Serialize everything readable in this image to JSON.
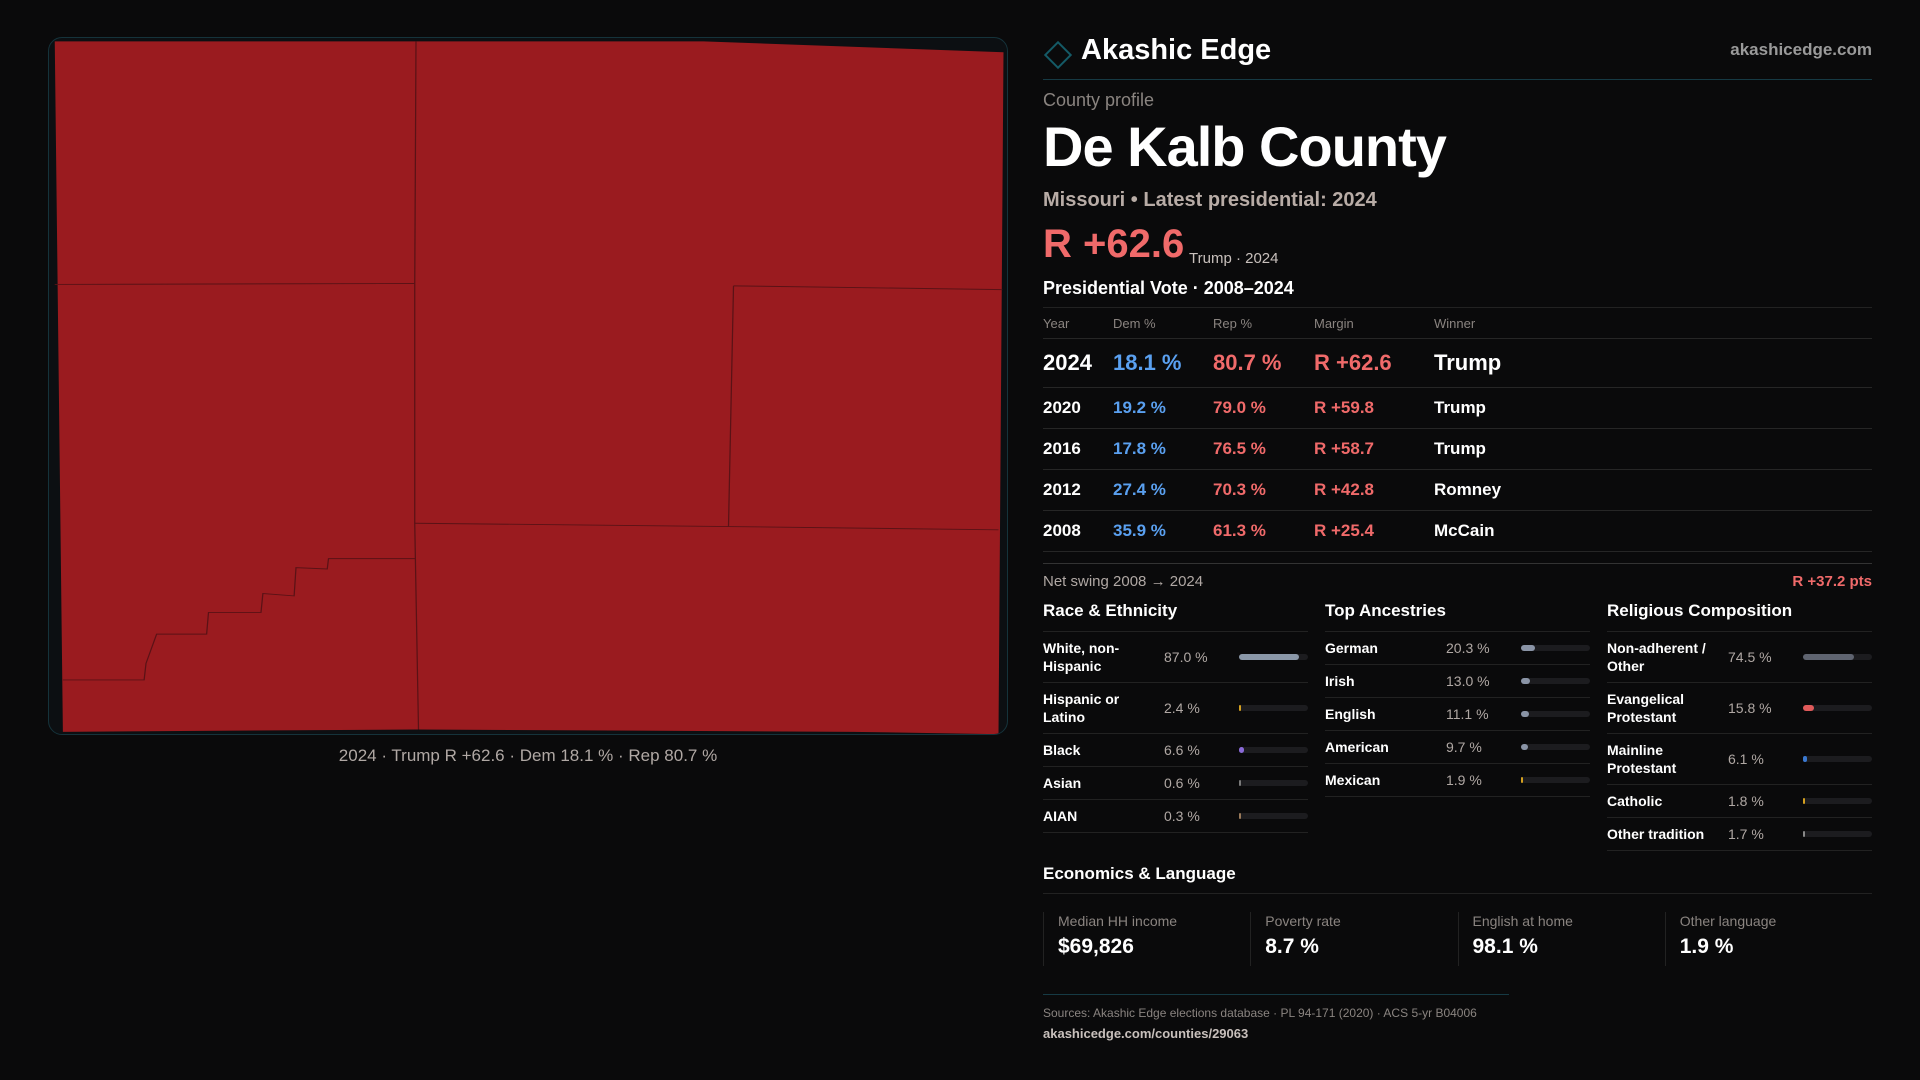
{
  "brand": {
    "name": "Akashic Edge",
    "url": "akashicedge.com",
    "logo_icon": "diamond-icon"
  },
  "profile": {
    "kicker": "County profile",
    "title": "De Kalb County",
    "subtitle": "Missouri • Latest presidential: 2024",
    "headline_margin": "R +62.6",
    "headline_sub": "Trump · 2024"
  },
  "map": {
    "fill_color": "#9a1b1f",
    "caption": "2024 · Trump R +62.6 · Dem 18.1 % · Rep 80.7 %"
  },
  "votes": {
    "title": "Presidential Vote · 2008–2024",
    "columns": [
      "Year",
      "Dem %",
      "Rep %",
      "Margin",
      "Winner"
    ],
    "rows": [
      [
        "2024",
        "18.1 %",
        "80.7 %",
        "R +62.6",
        "Trump"
      ],
      [
        "2020",
        "19.2 %",
        "79.0 %",
        "R +59.8",
        "Trump"
      ],
      [
        "2016",
        "17.8 %",
        "76.5 %",
        "R +58.7",
        "Trump"
      ],
      [
        "2012",
        "27.4 %",
        "70.3 %",
        "R +42.8",
        "Romney"
      ],
      [
        "2008",
        "35.9 %",
        "61.3 %",
        "R +25.4",
        "McCain"
      ]
    ],
    "swing_label": "Net swing 2008 → 2024",
    "swing_value": "R +37.2 pts"
  },
  "sections": [
    {
      "title": "Race & Ethnicity",
      "items": [
        {
          "label": "White, non-Hispanic",
          "value": "87.0 %",
          "pct": 87.0,
          "color": "#8a97a8"
        },
        {
          "label": "Hispanic or Latino",
          "value": "2.4 %",
          "pct": 2.4,
          "color": "#d4a020"
        },
        {
          "label": "Black",
          "value": "6.6 %",
          "pct": 6.6,
          "color": "#8a6ad8"
        },
        {
          "label": "Asian",
          "value": "0.6 %",
          "pct": 0.6,
          "color": "#7a7a7a"
        },
        {
          "label": "AIAN",
          "value": "0.3 %",
          "pct": 0.3,
          "color": "#9a7a5a"
        }
      ]
    },
    {
      "title": "Top Ancestries",
      "items": [
        {
          "label": "German",
          "value": "20.3 %",
          "pct": 20.3,
          "color": "#8a94a6"
        },
        {
          "label": "Irish",
          "value": "13.0 %",
          "pct": 13.0,
          "color": "#8a94a6"
        },
        {
          "label": "English",
          "value": "11.1 %",
          "pct": 11.1,
          "color": "#8a94a6"
        },
        {
          "label": "American",
          "value": "9.7 %",
          "pct": 9.7,
          "color": "#8a94a6"
        },
        {
          "label": "Mexican",
          "value": "1.9 %",
          "pct": 1.9,
          "color": "#d4a020"
        }
      ]
    },
    {
      "title": "Religious Composition",
      "items": [
        {
          "label": "Non-adherent / Other",
          "value": "74.5 %",
          "pct": 74.5,
          "color": "#5f6470"
        },
        {
          "label": "Evangelical Protestant",
          "value": "15.8 %",
          "pct": 15.8,
          "color": "#e05a5a"
        },
        {
          "label": "Mainline Protestant",
          "value": "6.1 %",
          "pct": 6.1,
          "color": "#3a78d0"
        },
        {
          "label": "Catholic",
          "value": "1.8 %",
          "pct": 1.8,
          "color": "#d4a020"
        },
        {
          "label": "Other tradition",
          "value": "1.7 %",
          "pct": 1.7,
          "color": "#888888"
        }
      ]
    }
  ],
  "economics": {
    "title": "Economics & Language",
    "cards": [
      {
        "label": "Median HH income",
        "value": "$69,826"
      },
      {
        "label": "Poverty rate",
        "value": "8.7 %"
      },
      {
        "label": "English at home",
        "value": "98.1 %"
      },
      {
        "label": "Other language",
        "value": "1.9 %"
      }
    ]
  },
  "footer": {
    "sources": "Sources: Akashic Edge elections database · PL 94-171 (2020) · ACS 5-yr B04006",
    "url": "akashicedge.com/counties/29063"
  }
}
